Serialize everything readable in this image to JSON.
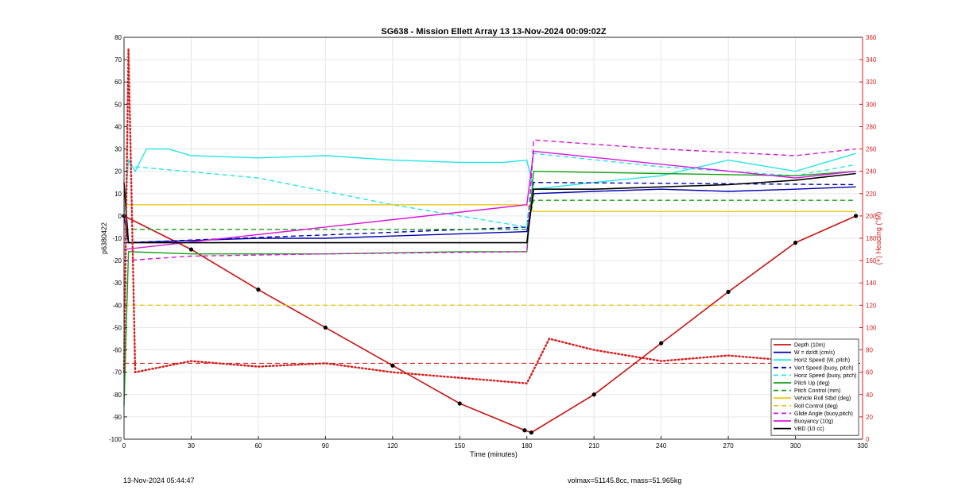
{
  "footer": {
    "timestamp": "13-Nov-2024 05:44:47",
    "volmax": "volmax=51145.8cc, mass=51.965kg"
  },
  "colors": {
    "depth": "#cc1111",
    "w": "#0000b4",
    "cyan": "#22e6e6",
    "green": "#14a014",
    "yellow": "#e6c81e",
    "magenta": "#dc14dc",
    "black": "#000000",
    "heading": "#d81e1e",
    "axis_right": "#d81e1e"
  },
  "chart_data": {
    "type": "line",
    "title": "SG638 - Mission Ellett Array 13 13-Nov-2024 00:09:02Z",
    "xlabel": "Time (minutes)",
    "ylabel": "p6380422",
    "y2label": "(+) Heading (°M)",
    "xlim": [
      0,
      330
    ],
    "ylim": [
      -100,
      80
    ],
    "y2lim": [
      0,
      360
    ],
    "xticks": [
      "0",
      "30",
      "60",
      "90",
      "120",
      "150",
      "180",
      "210",
      "240",
      "270",
      "300",
      "330"
    ],
    "yticks": [
      "-100",
      "-90",
      "-80",
      "-70",
      "-60",
      "-50",
      "-40",
      "-30",
      "-20",
      "-10",
      "0",
      "10",
      "20",
      "30",
      "40",
      "50",
      "60",
      "70",
      "80"
    ],
    "y2ticks": [
      "0",
      "20",
      "40",
      "60",
      "80",
      "100",
      "120",
      "140",
      "160",
      "180",
      "200",
      "220",
      "240",
      "260",
      "280",
      "300",
      "320",
      "340",
      "360"
    ],
    "grid": true,
    "legend_position": "bottom-right",
    "series": [
      {
        "name": "Depth (10m)",
        "style": "solid",
        "color_key": "depth",
        "x": [
          0,
          30,
          60,
          90,
          120,
          150,
          179,
          182,
          210,
          240,
          270,
          300,
          327
        ],
        "y": [
          0,
          -15,
          -33,
          -50,
          -67,
          -84,
          -96,
          -97,
          -80,
          -57,
          -34,
          -12,
          0
        ]
      },
      {
        "name": "W = dz/dt (cm/s)",
        "style": "solid",
        "color_key": "w",
        "x": [
          0,
          2,
          30,
          60,
          90,
          120,
          150,
          180,
          183,
          210,
          240,
          270,
          300,
          327
        ],
        "y": [
          0,
          -12,
          -11,
          -10,
          -10,
          -9,
          -8,
          -7,
          10,
          11,
          12,
          11,
          12,
          13
        ]
      },
      {
        "name": "Horiz Speed (W, pitch)",
        "style": "solid",
        "color_key": "cyan",
        "x": [
          0,
          2,
          5,
          10,
          20,
          30,
          60,
          90,
          120,
          150,
          170,
          180,
          183,
          210,
          240,
          270,
          300,
          327
        ],
        "y": [
          0,
          25,
          20,
          30,
          30,
          27,
          26,
          27,
          25,
          24,
          24,
          25,
          12,
          15,
          18,
          25,
          20,
          28
        ]
      },
      {
        "name": "Vert Speed (buoy, pitch)",
        "style": "dashed",
        "color_key": "w",
        "x": [
          0,
          180,
          183,
          327
        ],
        "y": [
          -12,
          -5,
          15,
          14
        ]
      },
      {
        "name": "Horiz Speed (buoy, pitch)",
        "style": "dashed",
        "color_key": "cyan",
        "x": [
          5,
          60,
          120,
          180,
          183,
          240,
          300,
          327
        ],
        "y": [
          22,
          17,
          5,
          -5,
          28,
          22,
          18,
          23
        ]
      },
      {
        "name": "Pitch Up (deg)",
        "style": "solid",
        "color_key": "green",
        "x": [
          0,
          2,
          30,
          90,
          150,
          180,
          183,
          240,
          300,
          327
        ],
        "y": [
          -85,
          -16,
          -17,
          -17,
          -16,
          -16,
          20,
          19,
          18,
          20
        ]
      },
      {
        "name": "Pitch Control (mm)",
        "style": "dashed",
        "color_key": "green",
        "x": [
          0,
          180,
          183,
          327
        ],
        "y": [
          -6,
          -6,
          7,
          7
        ]
      },
      {
        "name": "Vehicle Roll Stbd (deg)",
        "style": "solid",
        "color_key": "yellow",
        "x": [
          0,
          180,
          183,
          327
        ],
        "y": [
          5,
          5,
          2,
          2
        ]
      },
      {
        "name": "Roll Control (deg)",
        "style": "dashed",
        "color_key": "yellow",
        "x": [
          0,
          180,
          183,
          327
        ],
        "y": [
          -40,
          -40,
          -40,
          -40
        ]
      },
      {
        "name": "Glide Angle (buoy,pitch)",
        "style": "dashed",
        "color_key": "magenta",
        "x": [
          0,
          30,
          90,
          180,
          183,
          240,
          300,
          327
        ],
        "y": [
          -20,
          -18,
          -17,
          -16,
          34,
          30,
          27,
          30
        ]
      },
      {
        "name": "Buoyancy (10g)",
        "style": "solid",
        "color_key": "magenta",
        "x": [
          0,
          180,
          183,
          300,
          327
        ],
        "y": [
          -15,
          5,
          29,
          17,
          20
        ]
      },
      {
        "name": "VBD (10 cc)",
        "style": "solid",
        "color_key": "black",
        "x": [
          0,
          2,
          30,
          60,
          90,
          120,
          150,
          180,
          183,
          210,
          240,
          270,
          300,
          327
        ],
        "y": [
          15,
          -12,
          -12,
          -12,
          -12,
          -12,
          -12,
          -12,
          12,
          12,
          13,
          14,
          16,
          19
        ]
      },
      {
        "name": "Heading",
        "style": "dotted",
        "axis": "right",
        "color_key": "heading",
        "x": [
          0,
          2,
          5,
          30,
          60,
          90,
          120,
          150,
          180,
          190,
          210,
          240,
          270,
          300,
          327
        ],
        "y": [
          60,
          350,
          60,
          70,
          65,
          68,
          60,
          55,
          50,
          90,
          80,
          70,
          75,
          70,
          60
        ]
      }
    ],
    "annotations": [
      {
        "type": "hline",
        "axis": "right",
        "value": 68,
        "style": "dashed",
        "color_key": "heading"
      }
    ]
  }
}
